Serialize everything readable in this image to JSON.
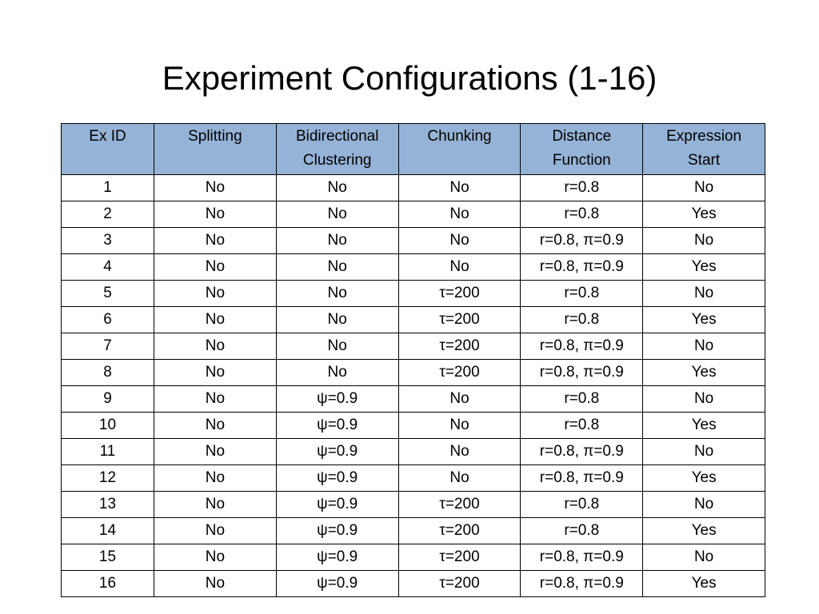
{
  "title": "Experiment Configurations (1-16)",
  "table": {
    "header_color": "#95b3d7",
    "headers": [
      [
        "Ex ID"
      ],
      [
        "Splitting"
      ],
      [
        "Bidirectional",
        "Clustering"
      ],
      [
        "Chunking"
      ],
      [
        "Distance",
        "Function"
      ],
      [
        "Expression",
        "Start"
      ]
    ],
    "rows": [
      [
        "1",
        "No",
        "No",
        "No",
        "r=0.8",
        "No"
      ],
      [
        "2",
        "No",
        "No",
        "No",
        "r=0.8",
        "Yes"
      ],
      [
        "3",
        "No",
        "No",
        "No",
        "r=0.8, π=0.9",
        "No"
      ],
      [
        "4",
        "No",
        "No",
        "No",
        "r=0.8, π=0.9",
        "Yes"
      ],
      [
        "5",
        "No",
        "No",
        "τ=200",
        "r=0.8",
        "No"
      ],
      [
        "6",
        "No",
        "No",
        "τ=200",
        "r=0.8",
        "Yes"
      ],
      [
        "7",
        "No",
        "No",
        "τ=200",
        "r=0.8, π=0.9",
        "No"
      ],
      [
        "8",
        "No",
        "No",
        "τ=200",
        "r=0.8, π=0.9",
        "Yes"
      ],
      [
        "9",
        "No",
        "ψ=0.9",
        "No",
        "r=0.8",
        "No"
      ],
      [
        "10",
        "No",
        "ψ=0.9",
        "No",
        "r=0.8",
        "Yes"
      ],
      [
        "11",
        "No",
        "ψ=0.9",
        "No",
        "r=0.8, π=0.9",
        "No"
      ],
      [
        "12",
        "No",
        "ψ=0.9",
        "No",
        "r=0.8, π=0.9",
        "Yes"
      ],
      [
        "13",
        "No",
        "ψ=0.9",
        "τ=200",
        "r=0.8",
        "No"
      ],
      [
        "14",
        "No",
        "ψ=0.9",
        "τ=200",
        "r=0.8",
        "Yes"
      ],
      [
        "15",
        "No",
        "ψ=0.9",
        "τ=200",
        "r=0.8, π=0.9",
        "No"
      ],
      [
        "16",
        "No",
        "ψ=0.9",
        "τ=200",
        "r=0.8, π=0.9",
        "Yes"
      ]
    ]
  }
}
